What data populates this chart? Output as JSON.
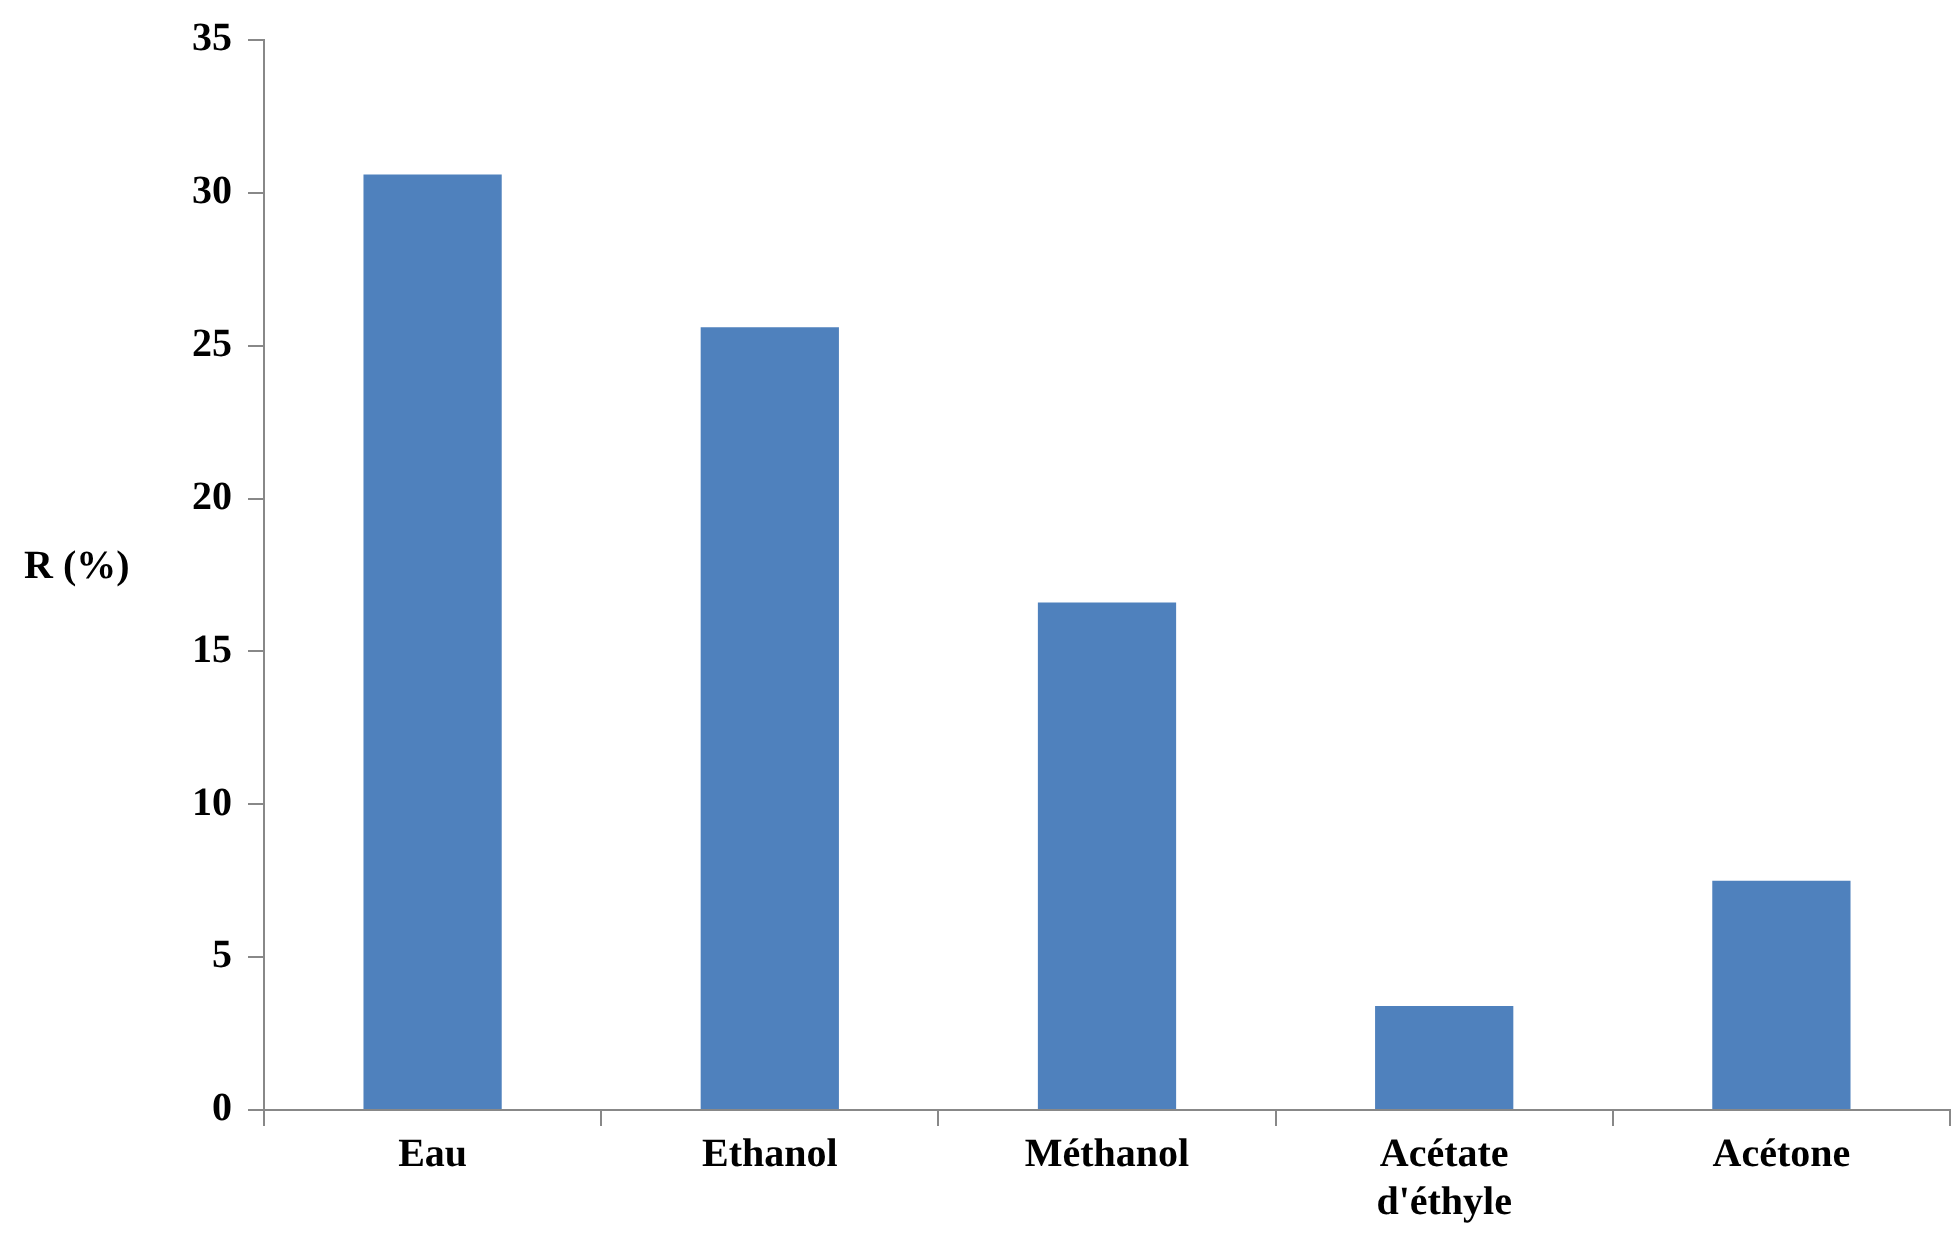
{
  "chart_data": {
    "type": "bar",
    "ylabel": "R (%)",
    "categories": [
      "Eau",
      "Ethanol",
      "Méthanol",
      "Acétate d'éthyle",
      "Acétone"
    ],
    "values": [
      30.6,
      25.6,
      16.6,
      3.4,
      7.5
    ],
    "color": "#4f81bd",
    "ylim": [
      0,
      35
    ],
    "yticks": [
      0,
      5,
      10,
      15,
      20,
      25,
      30,
      35
    ],
    "grid": false,
    "legend": false
  }
}
